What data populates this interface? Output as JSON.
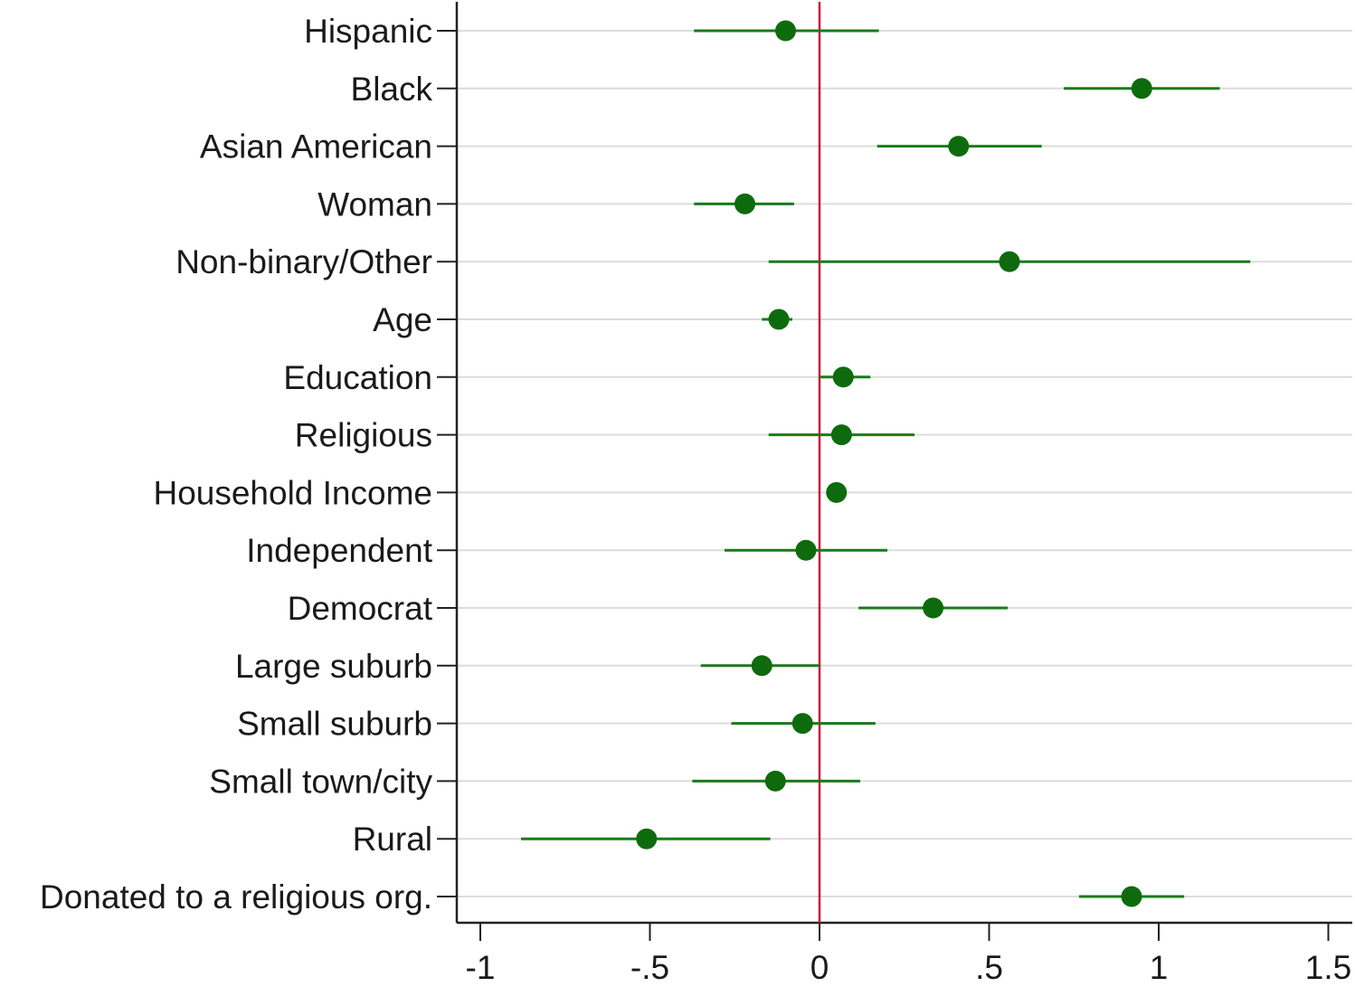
{
  "chart_data": {
    "type": "scatter",
    "subtype": "coefficient-plot",
    "orientation": "horizontal",
    "categories": [
      "Hispanic",
      "Black",
      "Asian American",
      "Woman",
      "Non-binary/Other",
      "Age",
      "Education",
      "Religious",
      "Household Income",
      "Independent",
      "Democrat",
      "Large suburb",
      "Small suburb",
      "Small town/city",
      "Rural",
      "Donated to a religious org."
    ],
    "series": [
      {
        "estimates": [
          -0.1,
          0.95,
          0.41,
          -0.22,
          0.56,
          -0.12,
          0.07,
          0.065,
          0.05,
          -0.04,
          0.335,
          -0.17,
          -0.05,
          -0.13,
          -0.51,
          0.92
        ],
        "ci_low": [
          -0.37,
          0.72,
          0.17,
          -0.37,
          -0.15,
          -0.17,
          0.0,
          -0.15,
          0.04,
          -0.28,
          0.115,
          -0.35,
          -0.26,
          -0.375,
          -0.88,
          0.765
        ],
        "ci_high": [
          0.175,
          1.18,
          0.655,
          -0.075,
          1.27,
          -0.08,
          0.15,
          0.28,
          0.06,
          0.2,
          0.555,
          0.0,
          0.165,
          0.12,
          -0.145,
          1.075
        ]
      }
    ],
    "x_ticks": [
      -1,
      -0.5,
      0,
      0.5,
      1,
      1.5
    ],
    "x_tick_labels": [
      "-1",
      "-.5",
      "0",
      ".5",
      "1",
      "1.5"
    ],
    "xlim": [
      -1.06,
      1.56
    ],
    "reference_line": 0,
    "grid": "horizontal",
    "legend": "none",
    "title": "",
    "xlabel": "",
    "ylabel": "",
    "colors": {
      "marker": "#0d6b0d",
      "ci_line": "#1a7a1a",
      "reference_line": "#c8193c",
      "grid": "#dcdcdc",
      "axis": "#222222",
      "text": "#1a1a1a"
    }
  }
}
